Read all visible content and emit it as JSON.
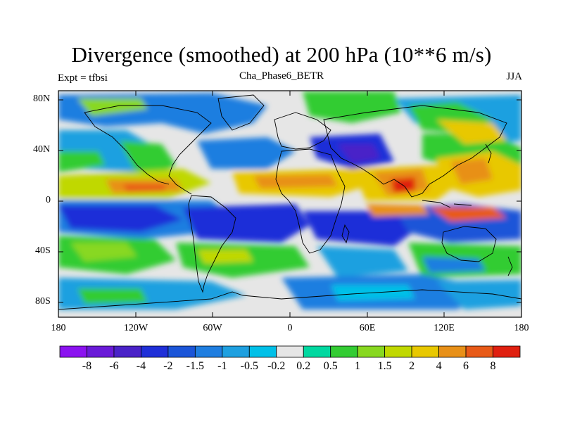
{
  "title": "Divergence (smoothed) at 200 hPa (10**6 m/s)",
  "subtitle_left": "Expt = tfbsi",
  "subtitle_center": "Cha_Phase6_BETR",
  "subtitle_right": "JJA",
  "lat_labels": [
    "80N",
    "40N",
    "0",
    "40S",
    "80S"
  ],
  "lon_labels": [
    "180",
    "120W",
    "60W",
    "0",
    "60E",
    "120E",
    "180"
  ],
  "colorbar": {
    "labels": [
      "-8",
      "-6",
      "-4",
      "-2",
      "-1.5",
      "-1",
      "-0.5",
      "-0.2",
      "0.2",
      "0.5",
      "1",
      "1.5",
      "2",
      "4",
      "6",
      "8"
    ],
    "colors": [
      "#8b12f0",
      "#6a1ad8",
      "#4a22c8",
      "#1f2fd8",
      "#1b55d8",
      "#1f7ee0",
      "#1ea0e0",
      "#00c0e8",
      "#e6e6e6",
      "#00d8a0",
      "#33cc33",
      "#88d820",
      "#c0d800",
      "#e8c800",
      "#e89018",
      "#e85a18",
      "#e02010"
    ]
  }
}
